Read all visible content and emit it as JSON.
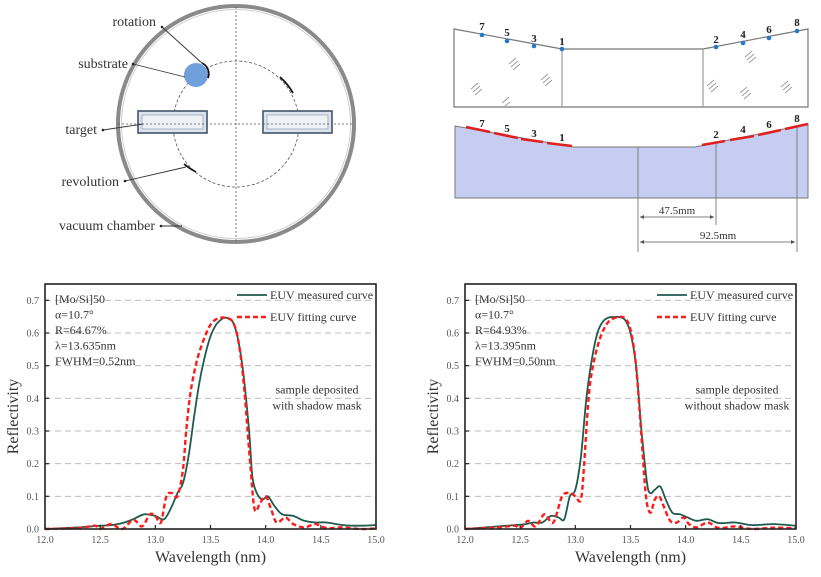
{
  "chamber_diagram": {
    "labels": {
      "rotation": "rotation",
      "substrate": "substrate",
      "target": "target",
      "revolution": "revolution",
      "vacuum_chamber": "vacuum chamber"
    },
    "colors": {
      "substrate": "#6fa0dc",
      "target_fill": "#dde3ec",
      "target_stroke": "#44546a",
      "chamber": "#888888"
    }
  },
  "mask_diagram": {
    "points_left": [
      "7",
      "5",
      "3",
      "1"
    ],
    "points_right": [
      "2",
      "4",
      "6",
      "8"
    ],
    "dimension_1": "47.5mm",
    "dimension_2": "92.5mm",
    "colors": {
      "point": "#2478c8",
      "substrate_fill": "#c5cef0",
      "mask_segment": "#e02020"
    }
  },
  "chart_data": [
    {
      "type": "line",
      "title": "",
      "xlabel": "Wavelength (nm)",
      "ylabel": "Reflectivity",
      "xlim": [
        12.0,
        15.0
      ],
      "ylim": [
        0.0,
        0.75
      ],
      "xticks": [
        "12.0",
        "12.5",
        "13.0",
        "13.5",
        "14.0",
        "14.5",
        "15.0"
      ],
      "yticks": [
        "0.0",
        "0.1",
        "0.2",
        "0.3",
        "0.4",
        "0.5",
        "0.6",
        "0.7"
      ],
      "grid": "horizontal dashed",
      "legend_position": "top-right",
      "info_lines": [
        "[Mo/Si]50",
        "α=10.7°",
        "R=64.67%",
        "λ=13.635nm",
        "FWHM=0.52nm"
      ],
      "note_lines": [
        "sample deposited",
        "with shadow mask"
      ],
      "peak_center": 13.635,
      "peak_reflectivity": 0.6467,
      "fwhm": 0.52,
      "series": [
        {
          "name": "EUV measured curve",
          "style": "solid",
          "color": "#1f5a4e",
          "x": [
            12.0,
            12.3,
            12.5,
            12.6,
            12.7,
            12.8,
            12.9,
            13.0,
            13.08,
            13.15,
            13.2,
            13.25,
            13.3,
            13.35,
            13.4,
            13.45,
            13.5,
            13.55,
            13.6,
            13.635,
            13.7,
            13.75,
            13.8,
            13.85,
            13.88,
            13.92,
            13.97,
            14.02,
            14.08,
            14.15,
            14.25,
            14.35,
            14.45,
            14.55,
            14.7,
            14.85,
            15.0
          ],
          "y": [
            0.0,
            0.005,
            0.01,
            0.012,
            0.018,
            0.03,
            0.045,
            0.04,
            0.03,
            0.07,
            0.11,
            0.14,
            0.22,
            0.34,
            0.45,
            0.53,
            0.59,
            0.625,
            0.642,
            0.647,
            0.635,
            0.58,
            0.47,
            0.3,
            0.16,
            0.11,
            0.09,
            0.1,
            0.07,
            0.045,
            0.04,
            0.025,
            0.02,
            0.02,
            0.012,
            0.01,
            0.012
          ]
        },
        {
          "name": "EUV fitting curve",
          "style": "dashed",
          "color": "#ff1a1a",
          "x": [
            12.0,
            12.3,
            12.45,
            12.5,
            12.6,
            12.7,
            12.8,
            12.88,
            12.95,
            13.0,
            13.05,
            13.1,
            13.15,
            13.2,
            13.25,
            13.28,
            13.32,
            13.38,
            13.45,
            13.5,
            13.55,
            13.6,
            13.635,
            13.7,
            13.75,
            13.8,
            13.86,
            13.9,
            13.95,
            14.0,
            14.05,
            14.1,
            14.18,
            14.25,
            14.35,
            14.45,
            14.55,
            14.7,
            14.85,
            15.0
          ],
          "y": [
            0.0,
            0.003,
            0.01,
            0.0,
            0.015,
            0.0,
            0.028,
            0.008,
            0.045,
            0.04,
            0.02,
            0.1,
            0.11,
            0.1,
            0.18,
            0.3,
            0.42,
            0.52,
            0.59,
            0.625,
            0.642,
            0.647,
            0.646,
            0.635,
            0.58,
            0.45,
            0.2,
            0.06,
            0.08,
            0.1,
            0.06,
            0.02,
            0.035,
            0.015,
            0.005,
            0.015,
            0.003,
            0.005,
            0.0,
            0.002
          ]
        }
      ]
    },
    {
      "type": "line",
      "title": "",
      "xlabel": "Wavelength (nm)",
      "ylabel": "Reflectivity",
      "xlim": [
        12.0,
        15.0
      ],
      "ylim": [
        0.0,
        0.75
      ],
      "xticks": [
        "12.0",
        "12.5",
        "13.0",
        "13.5",
        "14.0",
        "14.5",
        "15.0"
      ],
      "yticks": [
        "0.0",
        "0.1",
        "0.2",
        "0.3",
        "0.4",
        "0.5",
        "0.6",
        "0.7"
      ],
      "grid": "horizontal dashed",
      "legend_position": "top-right",
      "info_lines": [
        "[Mo/Si]50",
        "α=10.7°",
        "R=64.93%",
        "λ=13.395nm",
        "FWHM=0.50nm"
      ],
      "note_lines": [
        "sample deposited",
        "without shadow mask"
      ],
      "peak_center": 13.395,
      "peak_reflectivity": 0.6493,
      "fwhm": 0.5,
      "series": [
        {
          "name": "EUV measured curve",
          "style": "solid",
          "color": "#1f5a4e",
          "x": [
            12.0,
            12.3,
            12.45,
            12.55,
            12.62,
            12.7,
            12.78,
            12.85,
            12.9,
            12.95,
            13.0,
            13.05,
            13.1,
            13.15,
            13.2,
            13.25,
            13.3,
            13.35,
            13.395,
            13.45,
            13.5,
            13.55,
            13.6,
            13.65,
            13.68,
            13.72,
            13.77,
            13.82,
            13.88,
            13.95,
            14.02,
            14.1,
            14.2,
            14.3,
            14.45,
            14.6,
            14.8,
            15.0
          ],
          "y": [
            0.0,
            0.008,
            0.012,
            0.015,
            0.02,
            0.02,
            0.04,
            0.035,
            0.03,
            0.1,
            0.12,
            0.22,
            0.4,
            0.52,
            0.6,
            0.635,
            0.647,
            0.649,
            0.649,
            0.64,
            0.6,
            0.5,
            0.3,
            0.14,
            0.11,
            0.12,
            0.13,
            0.09,
            0.05,
            0.045,
            0.035,
            0.025,
            0.03,
            0.018,
            0.02,
            0.012,
            0.015,
            0.01
          ]
        },
        {
          "name": "EUV fitting curve",
          "style": "dashed",
          "color": "#ff1a1a",
          "x": [
            12.0,
            12.3,
            12.45,
            12.5,
            12.57,
            12.64,
            12.72,
            12.8,
            12.88,
            12.95,
            13.0,
            13.05,
            13.08,
            13.12,
            13.16,
            13.22,
            13.28,
            13.33,
            13.395,
            13.45,
            13.5,
            13.55,
            13.6,
            13.64,
            13.68,
            13.72,
            13.76,
            13.8,
            13.86,
            13.92,
            13.98,
            14.03,
            14.1,
            14.2,
            14.3,
            14.45,
            14.6,
            14.8,
            15.0
          ],
          "y": [
            0.0,
            0.005,
            0.01,
            0.002,
            0.025,
            0.008,
            0.045,
            0.02,
            0.1,
            0.11,
            0.1,
            0.09,
            0.2,
            0.4,
            0.5,
            0.58,
            0.625,
            0.642,
            0.649,
            0.645,
            0.61,
            0.5,
            0.28,
            0.1,
            0.05,
            0.09,
            0.1,
            0.07,
            0.025,
            0.02,
            0.035,
            0.015,
            0.005,
            0.02,
            0.003,
            0.008,
            0.0,
            0.004,
            0.002
          ]
        }
      ]
    }
  ]
}
